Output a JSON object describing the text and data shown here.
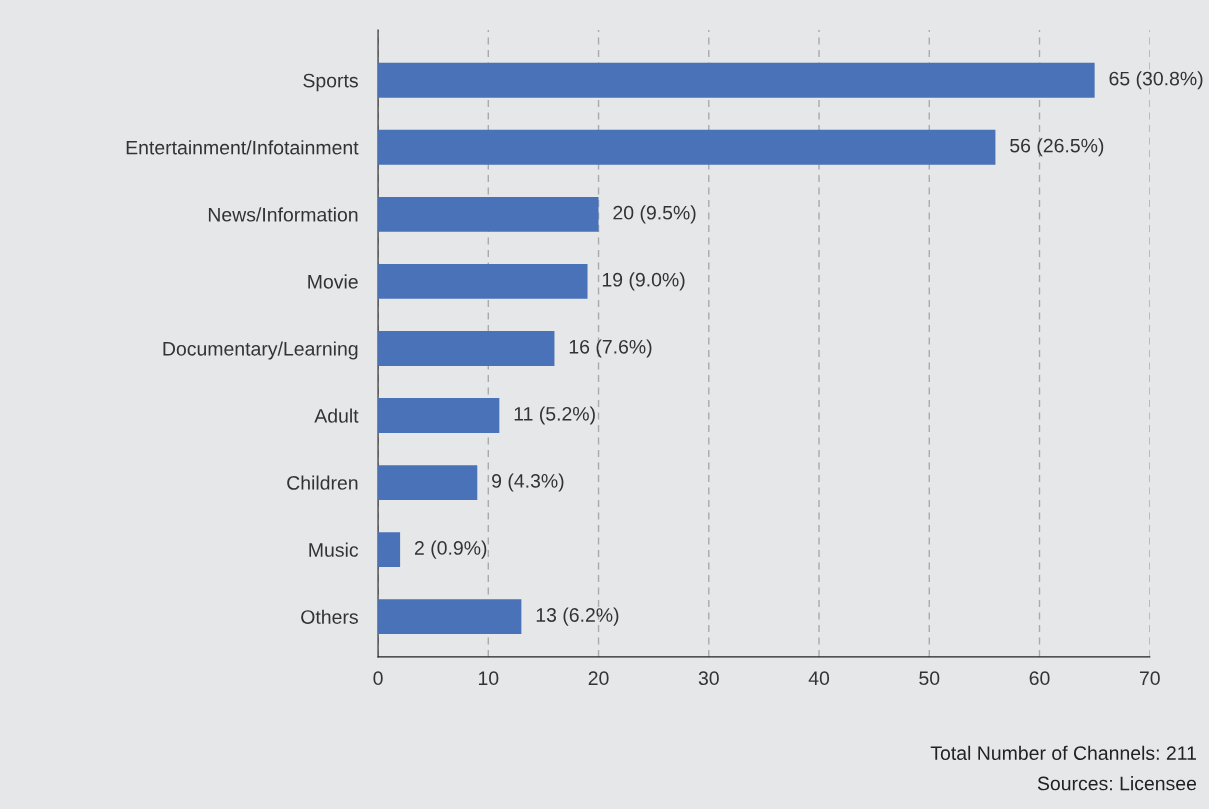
{
  "chart_data": {
    "type": "bar",
    "orientation": "horizontal",
    "categories": [
      "Sports",
      "Entertainment/Infotainment",
      "News/Information",
      "Movie",
      "Documentary/Learning",
      "Adult",
      "Children",
      "Music",
      "Others"
    ],
    "values": [
      65,
      56,
      20,
      19,
      16,
      11,
      9,
      2,
      13
    ],
    "value_labels": [
      "65 (30.8%)",
      "56 (26.5%)",
      "20 (9.5%)",
      "19 (9.0%)",
      "16 (7.6%)",
      "11 (5.2%)",
      "9 (4.3%)",
      "2 (0.9%)",
      "13 (6.2%)"
    ],
    "color": "#4a72b8",
    "xlim": [
      0,
      70
    ],
    "xticks": [
      0,
      10,
      20,
      30,
      40,
      50,
      60,
      70
    ],
    "grid": "x",
    "legend": false,
    "annotations": [
      "Total Number of Channels: 211",
      "Sources: Licensee"
    ]
  }
}
